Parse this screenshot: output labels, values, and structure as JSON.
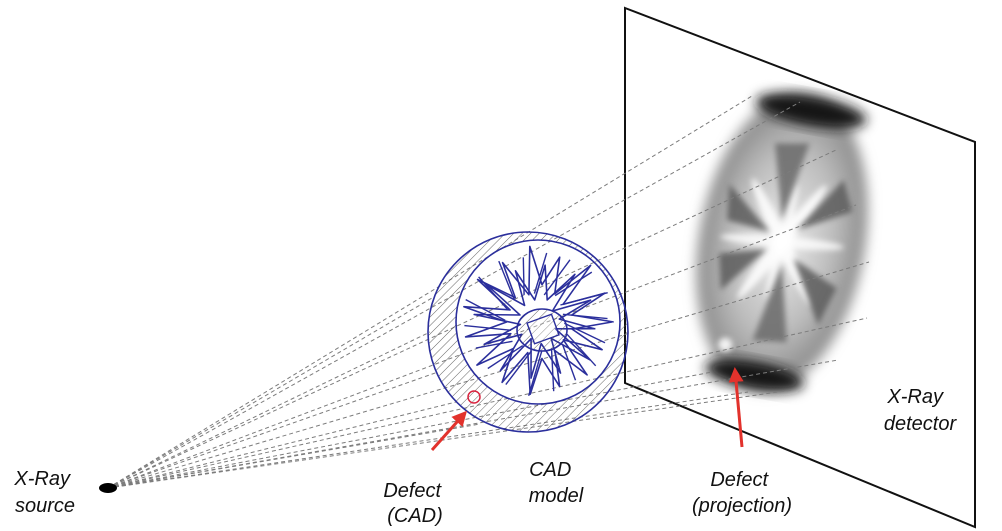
{
  "labels": {
    "source": {
      "line1": "X-Ray",
      "line2": "source"
    },
    "defect_cad": {
      "line1": "Defect",
      "line2": "(CAD)"
    },
    "cad_model": {
      "line1": "CAD",
      "line2": "model"
    },
    "defect_projection": {
      "line1": "Defect",
      "line2": "(projection)"
    },
    "detector": {
      "line1": "X-Ray",
      "line2": "detector"
    }
  },
  "colors": {
    "cad_model": "#2b2f9c",
    "arrow": "#e2322c",
    "defect_marker": "#d8243f",
    "ray": "#7c7c7c",
    "detector_frame": "#111111"
  }
}
